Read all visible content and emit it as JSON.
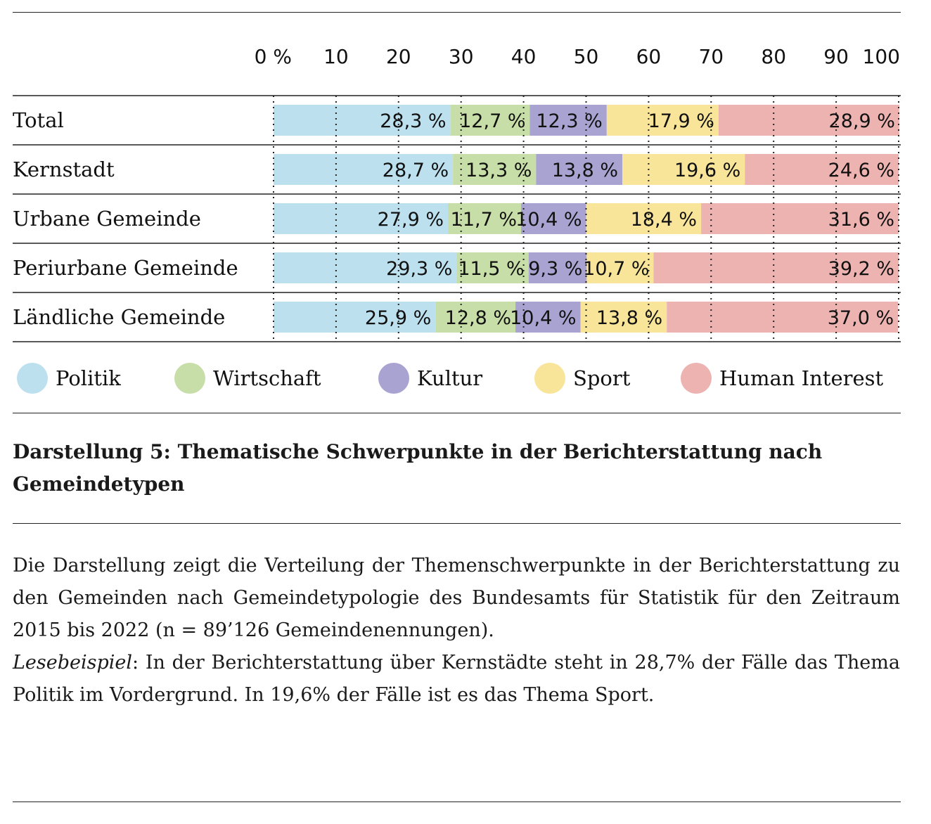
{
  "chart_data": {
    "type": "bar",
    "orientation": "horizontal",
    "stacked": true,
    "categories": [
      "Total",
      "Kernstadt",
      "Urbane Gemeinde",
      "Periurbane Gemeinde",
      "Ländliche Gemeinde"
    ],
    "series": [
      {
        "name": "Politik",
        "color": "#bde0ef",
        "values": [
          28.3,
          28.7,
          27.9,
          29.3,
          25.9
        ],
        "labels": [
          "28,3 %",
          "28,7 %",
          "27,9 %",
          "29,3 %",
          "25,9 %"
        ]
      },
      {
        "name": "Wirtschaft",
        "color": "#c8dea8",
        "values": [
          12.7,
          13.3,
          11.7,
          11.5,
          12.8
        ],
        "labels": [
          "12,7 %",
          "13,3 %",
          "11,7 %",
          "11,5 %",
          "12,8 %"
        ]
      },
      {
        "name": "Kultur",
        "color": "#a9a3d1",
        "values": [
          12.3,
          13.8,
          10.4,
          9.3,
          10.4
        ],
        "labels": [
          "12,3 %",
          "13,8 %",
          "10,4 %",
          "9,3 %",
          "10,4 %"
        ]
      },
      {
        "name": "Sport",
        "color": "#f8e59a",
        "values": [
          17.9,
          19.6,
          18.4,
          10.7,
          13.8
        ],
        "labels": [
          "17,9 %",
          "19,6 %",
          "18,4 %",
          "10,7 %",
          "13,8 %"
        ]
      },
      {
        "name": "Human Interest",
        "color": "#ecb3b1",
        "values": [
          28.9,
          24.6,
          31.6,
          39.2,
          37.0
        ],
        "labels": [
          "28,9 %",
          "24,6 %",
          "31,6 %",
          "39,2 %",
          "37,0 %"
        ]
      }
    ],
    "xlim": [
      0,
      100
    ],
    "x_ticks": [
      "0 %",
      "10",
      "20",
      "30",
      "40",
      "50",
      "60",
      "70",
      "80",
      "90",
      "100"
    ],
    "x_axis_position": "top",
    "grid": "dotted vertical",
    "legend_position": "bottom"
  },
  "caption": "Darstellung 5: Thematische Schwerpunkte in der Berichterstattung nach Gemeindetypen",
  "description": {
    "paragraph1": "Die Darstellung zeigt die Verteilung der Themenschwerpunkte in der Berichterstattung zu den Gemeinden nach Gemeindetypologie des Bundes­amts für Statistik für den Zeitraum 2015 bis 2022 (n = 89’126 Gemeinde­nennungen).",
    "example_label": "Lesebeispiel",
    "example_text": ": In der Berichterstattung über Kernstädte steht in 28,7% der Fälle das Thema Politik im Vordergrund. In 19,6% der Fälle ist es das Thema Sport."
  }
}
